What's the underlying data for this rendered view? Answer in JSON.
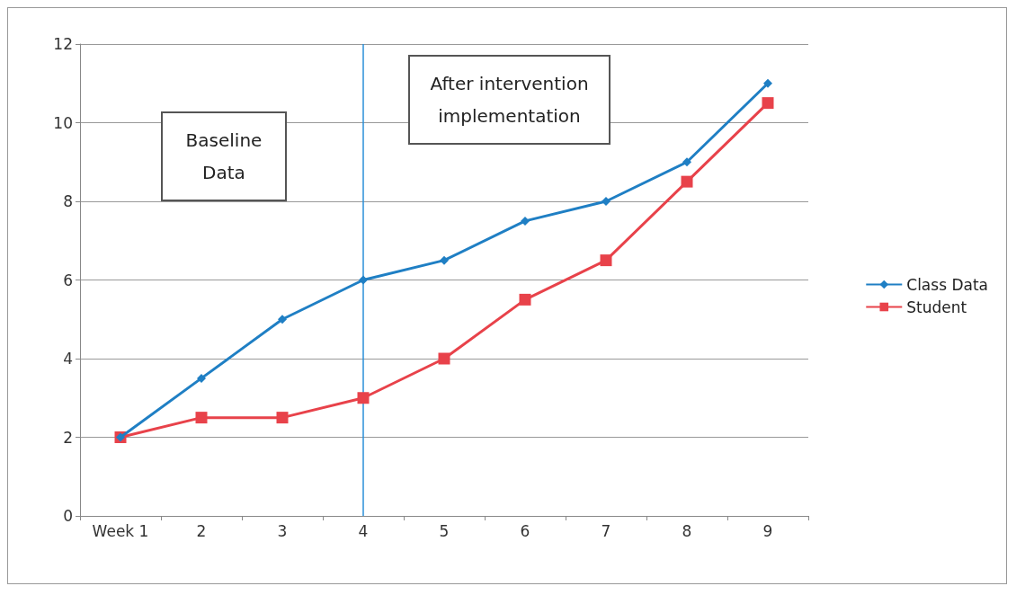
{
  "chart_data": {
    "type": "line",
    "categories": [
      "Week 1",
      "2",
      "3",
      "4",
      "5",
      "6",
      "7",
      "8",
      "9"
    ],
    "series": [
      {
        "name": "Class Data",
        "color": "#1f7fc4",
        "marker": "diamond",
        "values": [
          2,
          3.5,
          5,
          6,
          6.5,
          7.5,
          8,
          9,
          11
        ]
      },
      {
        "name": "Student",
        "color": "#e8424a",
        "marker": "square",
        "values": [
          2,
          2.5,
          2.5,
          3,
          4,
          5.5,
          6.5,
          8.5,
          10.5
        ]
      }
    ],
    "ylim": [
      0,
      12
    ],
    "yticks": [
      0,
      2,
      4,
      6,
      8,
      10,
      12
    ],
    "grid": "y",
    "legend": "right",
    "ref_lines": [
      {
        "axis": "x",
        "value": "4",
        "color": "#2a8fd8"
      }
    ],
    "annotations": [
      "Baseline Data",
      "After intervention implementation"
    ]
  }
}
